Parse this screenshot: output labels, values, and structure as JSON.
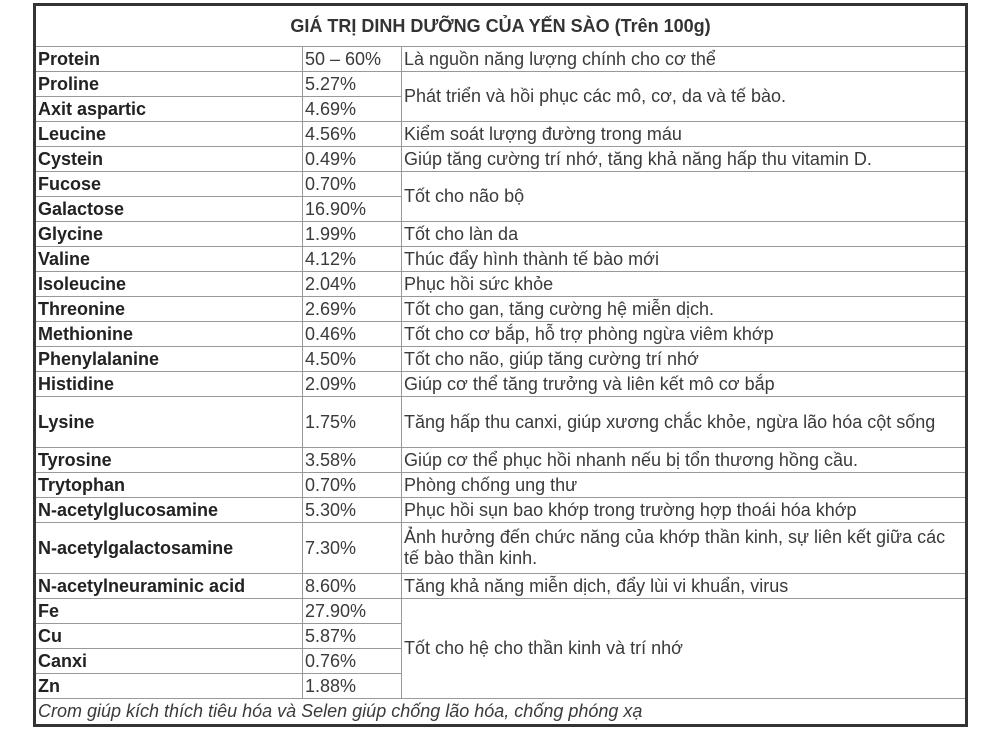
{
  "title": "GIÁ TRỊ DINH DƯỠNG CỦA YẾN SÀO (Trên 100g)",
  "rows": [
    {
      "name": "Protein",
      "value": "50 – 60%",
      "desc": "Là nguồn năng lượng chính cho cơ thể"
    },
    {
      "name": "Proline",
      "value": "5.27%",
      "desc": "Phát triển và hồi phục các mô, cơ, da và tế bào."
    },
    {
      "name": "Axit aspartic",
      "value": "4.69%"
    },
    {
      "name": "Leucine",
      "value": "4.56%",
      "desc": "Kiểm soát lượng đường trong máu"
    },
    {
      "name": "Cystein",
      "value": "0.49%",
      "desc": "Giúp tăng cường trí nhớ, tăng khả năng hấp thu vitamin D."
    },
    {
      "name": "Fucose",
      "value": "0.70%",
      "desc": "Tốt cho não bộ"
    },
    {
      "name": "Galactose",
      "value": "16.90%"
    },
    {
      "name": "Glycine",
      "value": "1.99%",
      "desc": "Tốt cho làn da"
    },
    {
      "name": "Valine",
      "value": "4.12%",
      "desc": "Thúc đẩy hình thành tế bào mới"
    },
    {
      "name": "Isoleucine",
      "value": "2.04%",
      "desc": "Phục hồi sức khỏe"
    },
    {
      "name": "Threonine",
      "value": "2.69%",
      "desc": "Tốt cho gan, tăng cường hệ miễn dịch."
    },
    {
      "name": "Methionine",
      "value": "0.46%",
      "desc": "Tốt cho cơ bắp, hỗ trợ phòng ngừa viêm khớp"
    },
    {
      "name": "Phenylalanine",
      "value": "4.50%",
      "desc": "Tốt cho não, giúp tăng cường trí nhớ"
    },
    {
      "name": "Histidine",
      "value": "2.09%",
      "desc": "Giúp cơ thể tăng trưởng và liên kết mô cơ bắp"
    },
    {
      "name": "Lysine",
      "value": "1.75%",
      "desc": "Tăng hấp thu canxi, giúp xương chắc khỏe, ngừa lão hóa cột sống"
    },
    {
      "name": "Tyrosine",
      "value": "3.58%",
      "desc": "Giúp cơ thể phục hồi nhanh nếu bị tổn thương hồng cầu."
    },
    {
      "name": "Trytophan",
      "value": "0.70%",
      "desc": "Phòng chống ung thư"
    },
    {
      "name": "N-acetylglucosamine",
      "value": "5.30%",
      "desc": "Phục hồi sụn bao khớp trong trường hợp thoái hóa khớp"
    },
    {
      "name": "N-acetylgalactosamine",
      "value": "7.30%",
      "desc": "Ảnh hưởng đến chức năng của khớp thần kinh, sự liên kết giữa các tế bào thần kinh."
    },
    {
      "name": "N-acetylneuraminic acid",
      "value": "8.60%",
      "desc": "Tăng khả năng miễn dịch, đẩy lùi vi khuẩn, virus"
    },
    {
      "name": "Fe",
      "value": "27.90%",
      "desc": "Tốt cho hệ cho thần kinh và trí nhớ"
    },
    {
      "name": "Cu",
      "value": "5.87%"
    },
    {
      "name": "Canxi",
      "value": "0.76%"
    },
    {
      "name": "Zn",
      "value": "1.88%"
    }
  ],
  "footer": "Crom giúp kích thích tiêu hóa và Selen giúp chống lão hóa, chống phóng xạ"
}
